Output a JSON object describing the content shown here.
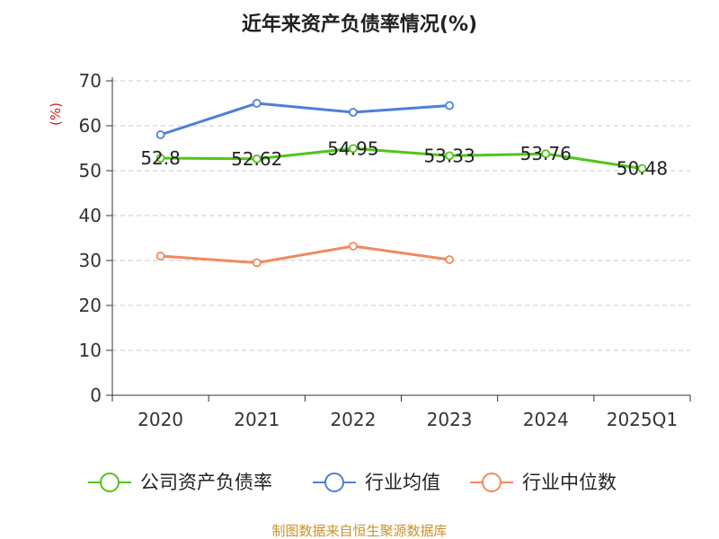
{
  "chart_data": {
    "type": "line",
    "title": "近年来资产负债率情况(%)",
    "ylabel": "(%)",
    "xlabel": "",
    "categories": [
      "2020",
      "2021",
      "2022",
      "2023",
      "2024",
      "2025Q1"
    ],
    "ylim": [
      0,
      70
    ],
    "yticks": [
      0,
      10,
      20,
      30,
      40,
      50,
      60,
      70
    ],
    "grid": true,
    "legend_position": "bottom",
    "series": [
      {
        "name": "公司资产负债率",
        "color": "#52c41a",
        "values": [
          52.8,
          52.62,
          54.95,
          53.33,
          53.76,
          50.48
        ],
        "labels": [
          "52.8",
          "52.62",
          "54.95",
          "53.33",
          "53.76",
          "50.48"
        ]
      },
      {
        "name": "行业均值",
        "color": "#4e7fd8",
        "values": [
          58,
          65,
          63,
          64.5,
          null,
          null
        ]
      },
      {
        "name": "行业中位数",
        "color": "#f08a5d",
        "values": [
          31,
          29.5,
          33.2,
          30.2,
          null,
          null
        ]
      }
    ],
    "source": "制图数据来自恒生聚源数据库"
  }
}
